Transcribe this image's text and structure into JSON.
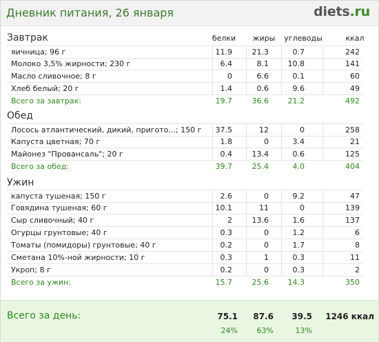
{
  "header": {
    "title": "Дневник питания, 26 января",
    "logo_brand": "diets",
    "logo_tld": ".ru"
  },
  "columns": {
    "protein": "белки",
    "fat": "жиры",
    "carbs": "углеводы",
    "kcal": "ккал"
  },
  "meals": [
    {
      "title": "Завтрак",
      "items": [
        {
          "name": "яичница; 96 г",
          "protein": "11.9",
          "fat": "21.3",
          "carbs": "0.7",
          "kcal": "242"
        },
        {
          "name": "Молоко 3,5% жирности; 230 г",
          "protein": "6.4",
          "fat": "8.1",
          "carbs": "10.8",
          "kcal": "141"
        },
        {
          "name": "Масло сливочное; 8 г",
          "protein": "0",
          "fat": "6.6",
          "carbs": "0.1",
          "kcal": "60"
        },
        {
          "name": "Хлеб белый; 20 г",
          "protein": "1.4",
          "fat": "0.6",
          "carbs": "9.6",
          "kcal": "49"
        }
      ],
      "total": {
        "name": "Всего за завтрак:",
        "protein": "19.7",
        "fat": "36.6",
        "carbs": "21.2",
        "kcal": "492"
      }
    },
    {
      "title": "Обед",
      "items": [
        {
          "name": "Лосось атлантический, дикий, пригото...; 150 г",
          "protein": "37.5",
          "fat": "12",
          "carbs": "0",
          "kcal": "258"
        },
        {
          "name": "Капуста цветная; 70 г",
          "protein": "1.8",
          "fat": "0",
          "carbs": "3.4",
          "kcal": "21"
        },
        {
          "name": "Майонез \"Провансаль\"; 20 г",
          "protein": "0.4",
          "fat": "13.4",
          "carbs": "0.6",
          "kcal": "125"
        }
      ],
      "total": {
        "name": "Всего за обед:",
        "protein": "39.7",
        "fat": "25.4",
        "carbs": "4.0",
        "kcal": "404"
      }
    },
    {
      "title": "Ужин",
      "items": [
        {
          "name": "капуста тушеная; 150 г",
          "protein": "2.6",
          "fat": "0",
          "carbs": "9.2",
          "kcal": "47"
        },
        {
          "name": "Говядина тушеная; 60 г",
          "protein": "10.1",
          "fat": "11",
          "carbs": "0",
          "kcal": "139"
        },
        {
          "name": "Сыр сливочный; 40 г",
          "protein": "2",
          "fat": "13.6",
          "carbs": "1.6",
          "kcal": "137"
        },
        {
          "name": "Огурцы грунтовые; 40 г",
          "protein": "0.3",
          "fat": "0",
          "carbs": "1.2",
          "kcal": "6"
        },
        {
          "name": "Томаты (помидоры) грунтовые; 40 г",
          "protein": "0.2",
          "fat": "0",
          "carbs": "1.7",
          "kcal": "8"
        },
        {
          "name": "Сметана 10%-ной жирности; 10 г",
          "protein": "0.3",
          "fat": "1",
          "carbs": "0.3",
          "kcal": "11"
        },
        {
          "name": "Укроп; 8 г",
          "protein": "0.2",
          "fat": "0",
          "carbs": "0.3",
          "kcal": "2"
        }
      ],
      "total": {
        "name": "Всего за ужин:",
        "protein": "15.7",
        "fat": "25.6",
        "carbs": "14.3",
        "kcal": "350"
      }
    }
  ],
  "day_total": {
    "label": "Всего за день:",
    "protein": "75.1",
    "fat": "87.6",
    "carbs": "39.5",
    "kcal": "1246 ккал",
    "protein_pct": "24%",
    "fat_pct": "63%",
    "carbs_pct": "13%"
  }
}
